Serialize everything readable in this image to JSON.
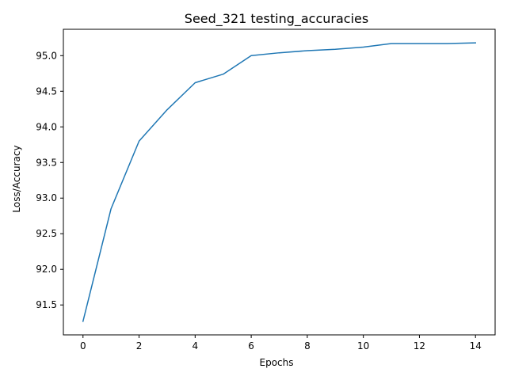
{
  "chart_data": {
    "type": "line",
    "title": "Seed_321 testing_accuracies",
    "xlabel": "Epochs",
    "ylabel": "Loss/Accuracy",
    "xlim": [
      -0.7,
      14.7
    ],
    "ylim": [
      91.08,
      95.37
    ],
    "xticks": [
      0,
      2,
      4,
      6,
      8,
      10,
      12,
      14
    ],
    "yticks": [
      91.5,
      92.0,
      92.5,
      93.0,
      93.5,
      94.0,
      94.5,
      95.0
    ],
    "grid": false,
    "series": [
      {
        "color": "#1f77b4",
        "x": [
          0,
          1,
          2,
          3,
          4,
          5,
          6,
          7,
          8,
          9,
          10,
          11,
          12,
          13,
          14
        ],
        "y": [
          91.27,
          92.85,
          93.8,
          94.24,
          94.62,
          94.74,
          95.0,
          95.04,
          95.07,
          95.09,
          95.12,
          95.17,
          95.17,
          95.17,
          95.18
        ]
      }
    ]
  }
}
